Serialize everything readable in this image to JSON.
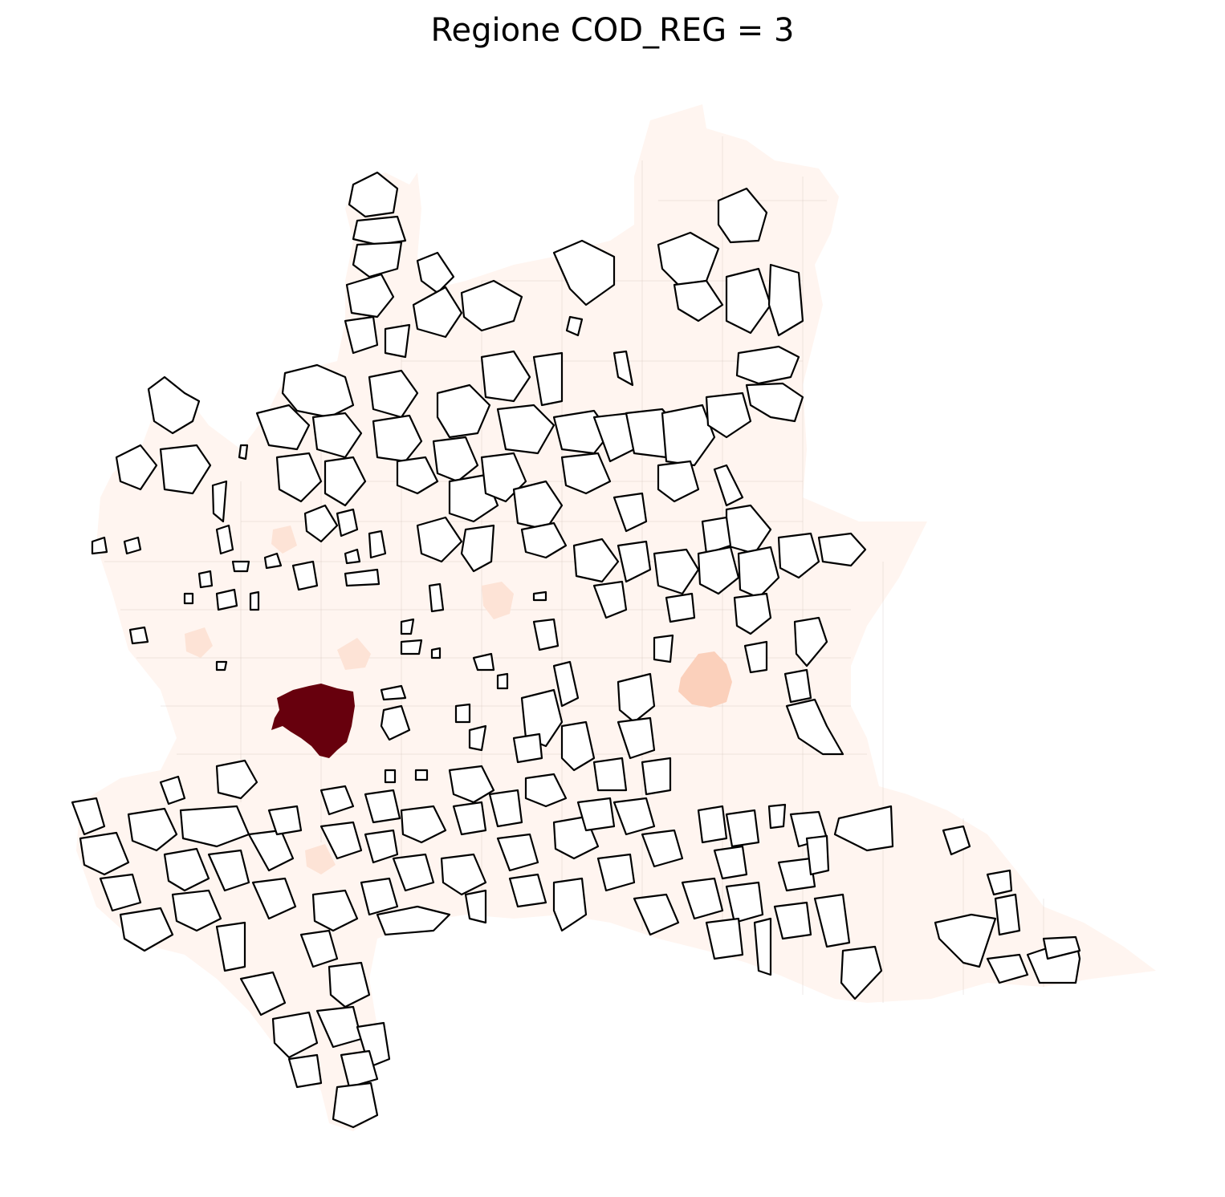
{
  "title": "Regione COD_REG = 3",
  "map": {
    "colormap": "Reds",
    "colors": {
      "base": "#fff5f0",
      "light": "#fde3d6",
      "mid": "#fbd0bb",
      "max": "#67000d",
      "missing_outline": "#000000",
      "missing_fill": "#ffffff"
    },
    "axes_visible": false
  }
}
